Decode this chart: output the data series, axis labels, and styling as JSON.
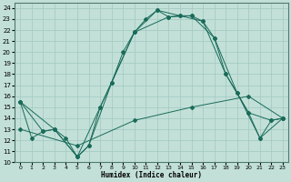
{
  "xlabel": "Humidex (Indice chaleur)",
  "background_color": "#c2e0d8",
  "grid_color": "#a0c8c0",
  "line_color": "#1a6b5a",
  "xlim": [
    -0.5,
    23.5
  ],
  "ylim": [
    10,
    24.5
  ],
  "yticks": [
    10,
    11,
    12,
    13,
    14,
    15,
    16,
    17,
    18,
    19,
    20,
    21,
    22,
    23,
    24
  ],
  "xticks": [
    0,
    1,
    2,
    3,
    4,
    5,
    6,
    7,
    8,
    9,
    10,
    11,
    12,
    13,
    14,
    15,
    16,
    17,
    18,
    19,
    20,
    21,
    22,
    23
  ],
  "line1_x": [
    0,
    1,
    2,
    3,
    4,
    5,
    6,
    7,
    8,
    9,
    10,
    11,
    12,
    13,
    14,
    15,
    16,
    17,
    18,
    19,
    20,
    21,
    22,
    23
  ],
  "line1_y": [
    15.5,
    12.2,
    12.8,
    13.0,
    12.2,
    10.5,
    11.5,
    15.0,
    17.2,
    20.0,
    21.8,
    23.0,
    23.8,
    23.2,
    23.3,
    23.3,
    22.8,
    21.3,
    18.0,
    16.3,
    14.5,
    12.2,
    13.8,
    14.0
  ],
  "line2_x": [
    0,
    2,
    3,
    5,
    6,
    8,
    10,
    12,
    14,
    16,
    18,
    20,
    22,
    23
  ],
  "line2_y": [
    15.5,
    12.8,
    13.0,
    10.5,
    11.5,
    17.2,
    21.8,
    23.8,
    23.3,
    22.8,
    18.0,
    14.5,
    13.8,
    14.0
  ],
  "line3_x": [
    0,
    3,
    5,
    7,
    10,
    13,
    15,
    17,
    19,
    21,
    23
  ],
  "line3_y": [
    15.5,
    13.0,
    10.5,
    15.0,
    21.8,
    23.2,
    23.3,
    21.3,
    16.3,
    12.2,
    14.0
  ],
  "line4_x": [
    0,
    5,
    10,
    15,
    20,
    23
  ],
  "line4_y": [
    13.0,
    11.5,
    13.8,
    15.0,
    16.0,
    14.0
  ]
}
